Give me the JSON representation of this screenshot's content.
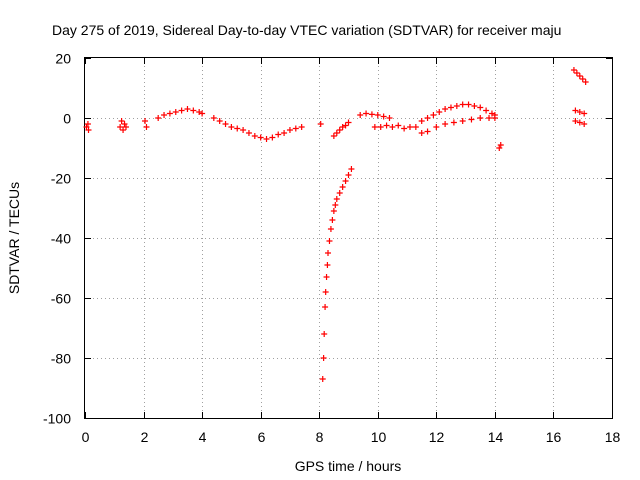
{
  "chart_data": {
    "type": "scatter",
    "title": "Day 275 of 2019, Sidereal Day-to-day VTEC variation (SDTVAR) for receiver maju",
    "xlabel": "GPS time / hours",
    "ylabel": "SDTVAR / TECUs",
    "xlim": [
      0,
      18
    ],
    "ylim": [
      -100,
      20
    ],
    "xticks": [
      "0",
      "2",
      "4",
      "6",
      "8",
      "10",
      "12",
      "14",
      "16",
      "18"
    ],
    "yticks": [
      "-100",
      "-80",
      "-60",
      "-40",
      "-20",
      "0",
      "20"
    ],
    "grid": true,
    "marker": "+",
    "color": "#ff0000",
    "series": [
      {
        "name": "SDTVAR",
        "x": [
          0.05,
          0.1,
          0.12,
          1.2,
          1.25,
          1.3,
          1.35,
          1.4,
          2.05,
          2.1,
          2.5,
          2.7,
          2.9,
          3.1,
          3.3,
          3.5,
          3.7,
          3.9,
          4.0,
          4.4,
          4.6,
          4.8,
          5.0,
          5.2,
          5.4,
          5.6,
          5.8,
          6.0,
          6.2,
          6.4,
          6.6,
          6.8,
          7.0,
          7.2,
          7.4,
          8.05,
          8.5,
          8.6,
          8.7,
          8.8,
          8.9,
          9.0,
          8.12,
          8.15,
          8.17,
          8.2,
          8.22,
          8.25,
          8.28,
          8.3,
          8.35,
          8.4,
          8.45,
          8.5,
          8.55,
          8.6,
          8.7,
          8.8,
          8.9,
          9.0,
          9.1,
          9.4,
          9.6,
          9.8,
          10.0,
          10.2,
          10.4,
          9.9,
          10.1,
          10.3,
          10.5,
          10.7,
          10.9,
          11.1,
          11.3,
          11.5,
          11.7,
          11.9,
          12.1,
          12.3,
          12.5,
          12.7,
          12.9,
          13.1,
          13.3,
          13.5,
          13.7,
          13.9,
          14.0,
          11.5,
          11.7,
          12.0,
          12.3,
          12.6,
          12.9,
          13.2,
          13.5,
          13.8,
          14.0,
          14.15,
          14.2,
          16.7,
          16.8,
          16.9,
          17.0,
          17.1,
          16.75,
          16.9,
          17.05,
          16.75,
          16.9,
          17.05
        ],
        "y": [
          -3,
          -2,
          -4,
          -3,
          -1,
          -4,
          -2,
          -3,
          -1,
          -3,
          0,
          1,
          1.5,
          2,
          2.5,
          3,
          2.5,
          2,
          1.5,
          0,
          -1,
          -2,
          -3,
          -3.5,
          -4,
          -5,
          -6,
          -6.5,
          -7,
          -6.5,
          -5.5,
          -5,
          -4,
          -3.5,
          -3,
          -2,
          -6,
          -5,
          -4,
          -3,
          -2.5,
          -1.5,
          -87,
          -80,
          -72,
          -63,
          -58,
          -53,
          -49,
          -45,
          -41,
          -37,
          -34,
          -31,
          -29,
          -27,
          -25,
          -23,
          -21,
          -19,
          -17,
          1,
          1.5,
          1.2,
          1,
          0.5,
          0,
          -3,
          -3,
          -2.5,
          -3,
          -2.5,
          -3.5,
          -3,
          -3,
          -1,
          0,
          1,
          2,
          3,
          3.5,
          4,
          4.5,
          4.5,
          4,
          3.5,
          2.5,
          1.5,
          1,
          -5,
          -4.5,
          -3,
          -2,
          -1.5,
          -1,
          -0.5,
          0,
          0,
          0,
          -10,
          -9,
          16,
          15,
          14,
          13,
          12,
          2.5,
          2,
          1.5,
          -1,
          -1.5,
          -2
        ]
      }
    ]
  }
}
